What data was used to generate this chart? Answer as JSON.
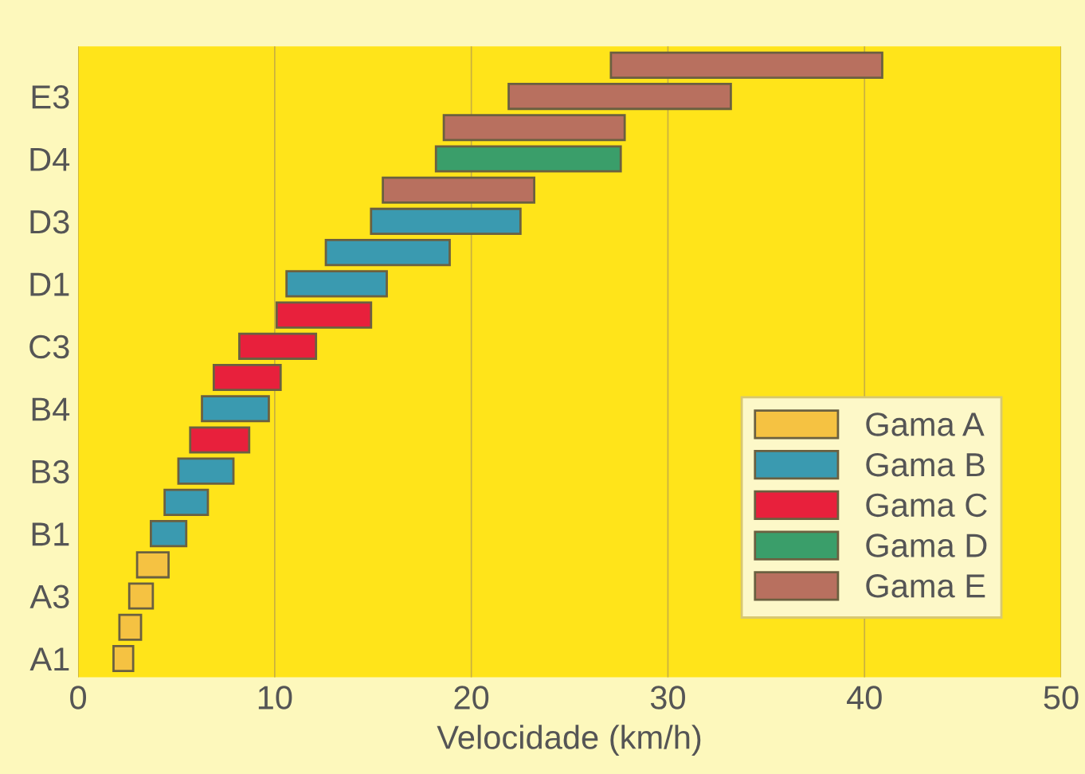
{
  "chart_data": {
    "type": "bar",
    "orientation": "horizontal",
    "xlabel": "Velocidade (km/h)",
    "categories": [
      null,
      "E3",
      null,
      "D4",
      null,
      "D3",
      null,
      "D1",
      null,
      "C3",
      null,
      "B4",
      null,
      "B3",
      null,
      "B1",
      null,
      "A3",
      null,
      "A1"
    ],
    "series": [
      {
        "name": "Gama A",
        "color": "#f5c242",
        "base": [
          null,
          null,
          null,
          null,
          null,
          null,
          null,
          null,
          null,
          null,
          null,
          null,
          null,
          null,
          null,
          null,
          3.0,
          2.6,
          2.1,
          1.8
        ],
        "values": [
          null,
          null,
          null,
          null,
          null,
          null,
          null,
          null,
          null,
          null,
          null,
          null,
          null,
          null,
          null,
          null,
          1.6,
          1.2,
          1.1,
          1.0
        ]
      },
      {
        "name": "Gama B",
        "color": "#3a9ab0",
        "base": [
          null,
          null,
          null,
          null,
          null,
          14.9,
          12.6,
          10.6,
          null,
          null,
          null,
          6.3,
          null,
          5.1,
          4.4,
          3.7,
          null,
          null,
          null,
          null
        ],
        "values": [
          null,
          null,
          null,
          null,
          null,
          7.6,
          6.3,
          5.1,
          null,
          null,
          null,
          3.4,
          null,
          2.8,
          2.2,
          1.8,
          null,
          null,
          null,
          null
        ]
      },
      {
        "name": "Gama C",
        "color": "#e8203c",
        "base": [
          null,
          null,
          null,
          null,
          null,
          null,
          null,
          null,
          10.1,
          8.2,
          6.9,
          null,
          5.7,
          null,
          null,
          null,
          null,
          null,
          null,
          null
        ],
        "values": [
          null,
          null,
          null,
          null,
          null,
          null,
          null,
          null,
          4.8,
          3.9,
          3.4,
          null,
          3.0,
          null,
          null,
          null,
          null,
          null,
          null,
          null
        ]
      },
      {
        "name": "Gama D",
        "color": "#3a9e6a",
        "base": [
          null,
          null,
          null,
          18.2,
          null,
          null,
          null,
          null,
          null,
          null,
          null,
          null,
          null,
          null,
          null,
          null,
          null,
          null,
          null,
          null
        ],
        "values": [
          null,
          null,
          null,
          9.4,
          null,
          null,
          null,
          null,
          null,
          null,
          null,
          null,
          null,
          null,
          null,
          null,
          null,
          null,
          null,
          null
        ]
      },
      {
        "name": "Gama E",
        "color": "#b8705f",
        "base": [
          27.1,
          21.9,
          18.6,
          null,
          15.5,
          null,
          null,
          null,
          null,
          null,
          null,
          null,
          null,
          null,
          null,
          null,
          null,
          null,
          null,
          null
        ],
        "values": [
          13.8,
          11.3,
          9.2,
          null,
          7.7,
          null,
          null,
          null,
          null,
          null,
          null,
          null,
          null,
          null,
          null,
          null,
          null,
          null,
          null,
          null
        ]
      }
    ],
    "xlim": [
      0,
      50
    ],
    "xticks": [
      0,
      10,
      20,
      30,
      40,
      50
    ],
    "grid": "x",
    "legend": "bottom right"
  }
}
